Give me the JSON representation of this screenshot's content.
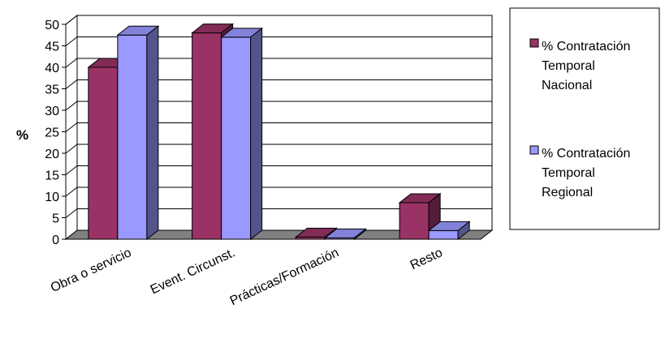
{
  "chart_data": {
    "type": "bar",
    "style": "3d-clustered",
    "categories": [
      "Obra o servicio",
      "Event. Circunst.",
      "Prácticas/Formación",
      "Resto"
    ],
    "series": [
      {
        "name": "% Contratación Temporal Nacional",
        "legend_lines": [
          "% Contratación",
          "Temporal",
          "Nacional"
        ],
        "values": [
          40,
          48,
          0.5,
          8.5
        ],
        "color": "#993366"
      },
      {
        "name": "% Contratación Temporal Regional",
        "legend_lines": [
          "% Contratación",
          "Temporal",
          "Regional"
        ],
        "values": [
          47.5,
          47,
          0.3,
          2
        ],
        "color": "#9999FF"
      }
    ],
    "ylabel": "%",
    "ylim": [
      0,
      50
    ],
    "yticks": [
      0,
      5,
      10,
      15,
      20,
      25,
      30,
      35,
      40,
      45,
      50
    ],
    "grid": true,
    "legend_position": "right"
  }
}
